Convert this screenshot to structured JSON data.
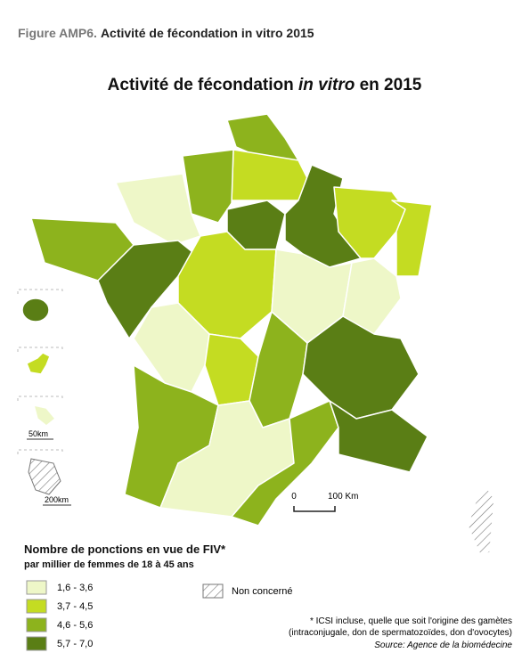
{
  "header": {
    "label": "Figure AMP6.",
    "text": "Activité de fécondation in vitro 2015"
  },
  "map": {
    "title": {
      "before": "Activité de fécondation ",
      "italic": "in vitro",
      "after": " en 2015"
    },
    "scale": {
      "start": "0",
      "end": "100 Km"
    },
    "inset_scales": [
      "50km",
      "200km"
    ]
  },
  "legend": {
    "title": "Nombre de ponctions en vue de FIV*",
    "subtitle": "par millier de femmes de 18 à 45 ans",
    "classes": [
      {
        "label": "1,6 - 3,6",
        "color": "#eef7c8"
      },
      {
        "label": "3,7 - 4,5",
        "color": "#c4dc22"
      },
      {
        "label": "4,6 - 5,6",
        "color": "#8db31d"
      },
      {
        "label": "5,7 - 7,0",
        "color": "#5a7e15"
      }
    ],
    "not_concerned": "Non concerné"
  },
  "notes": {
    "lines": [
      "* ICSI incluse, quelle que soit l'origine des gamètes",
      "(intraconjugale, don de spermatozoïdes, don d'ovocytes)"
    ],
    "source": "Source: Agence de la biomédecine"
  }
}
